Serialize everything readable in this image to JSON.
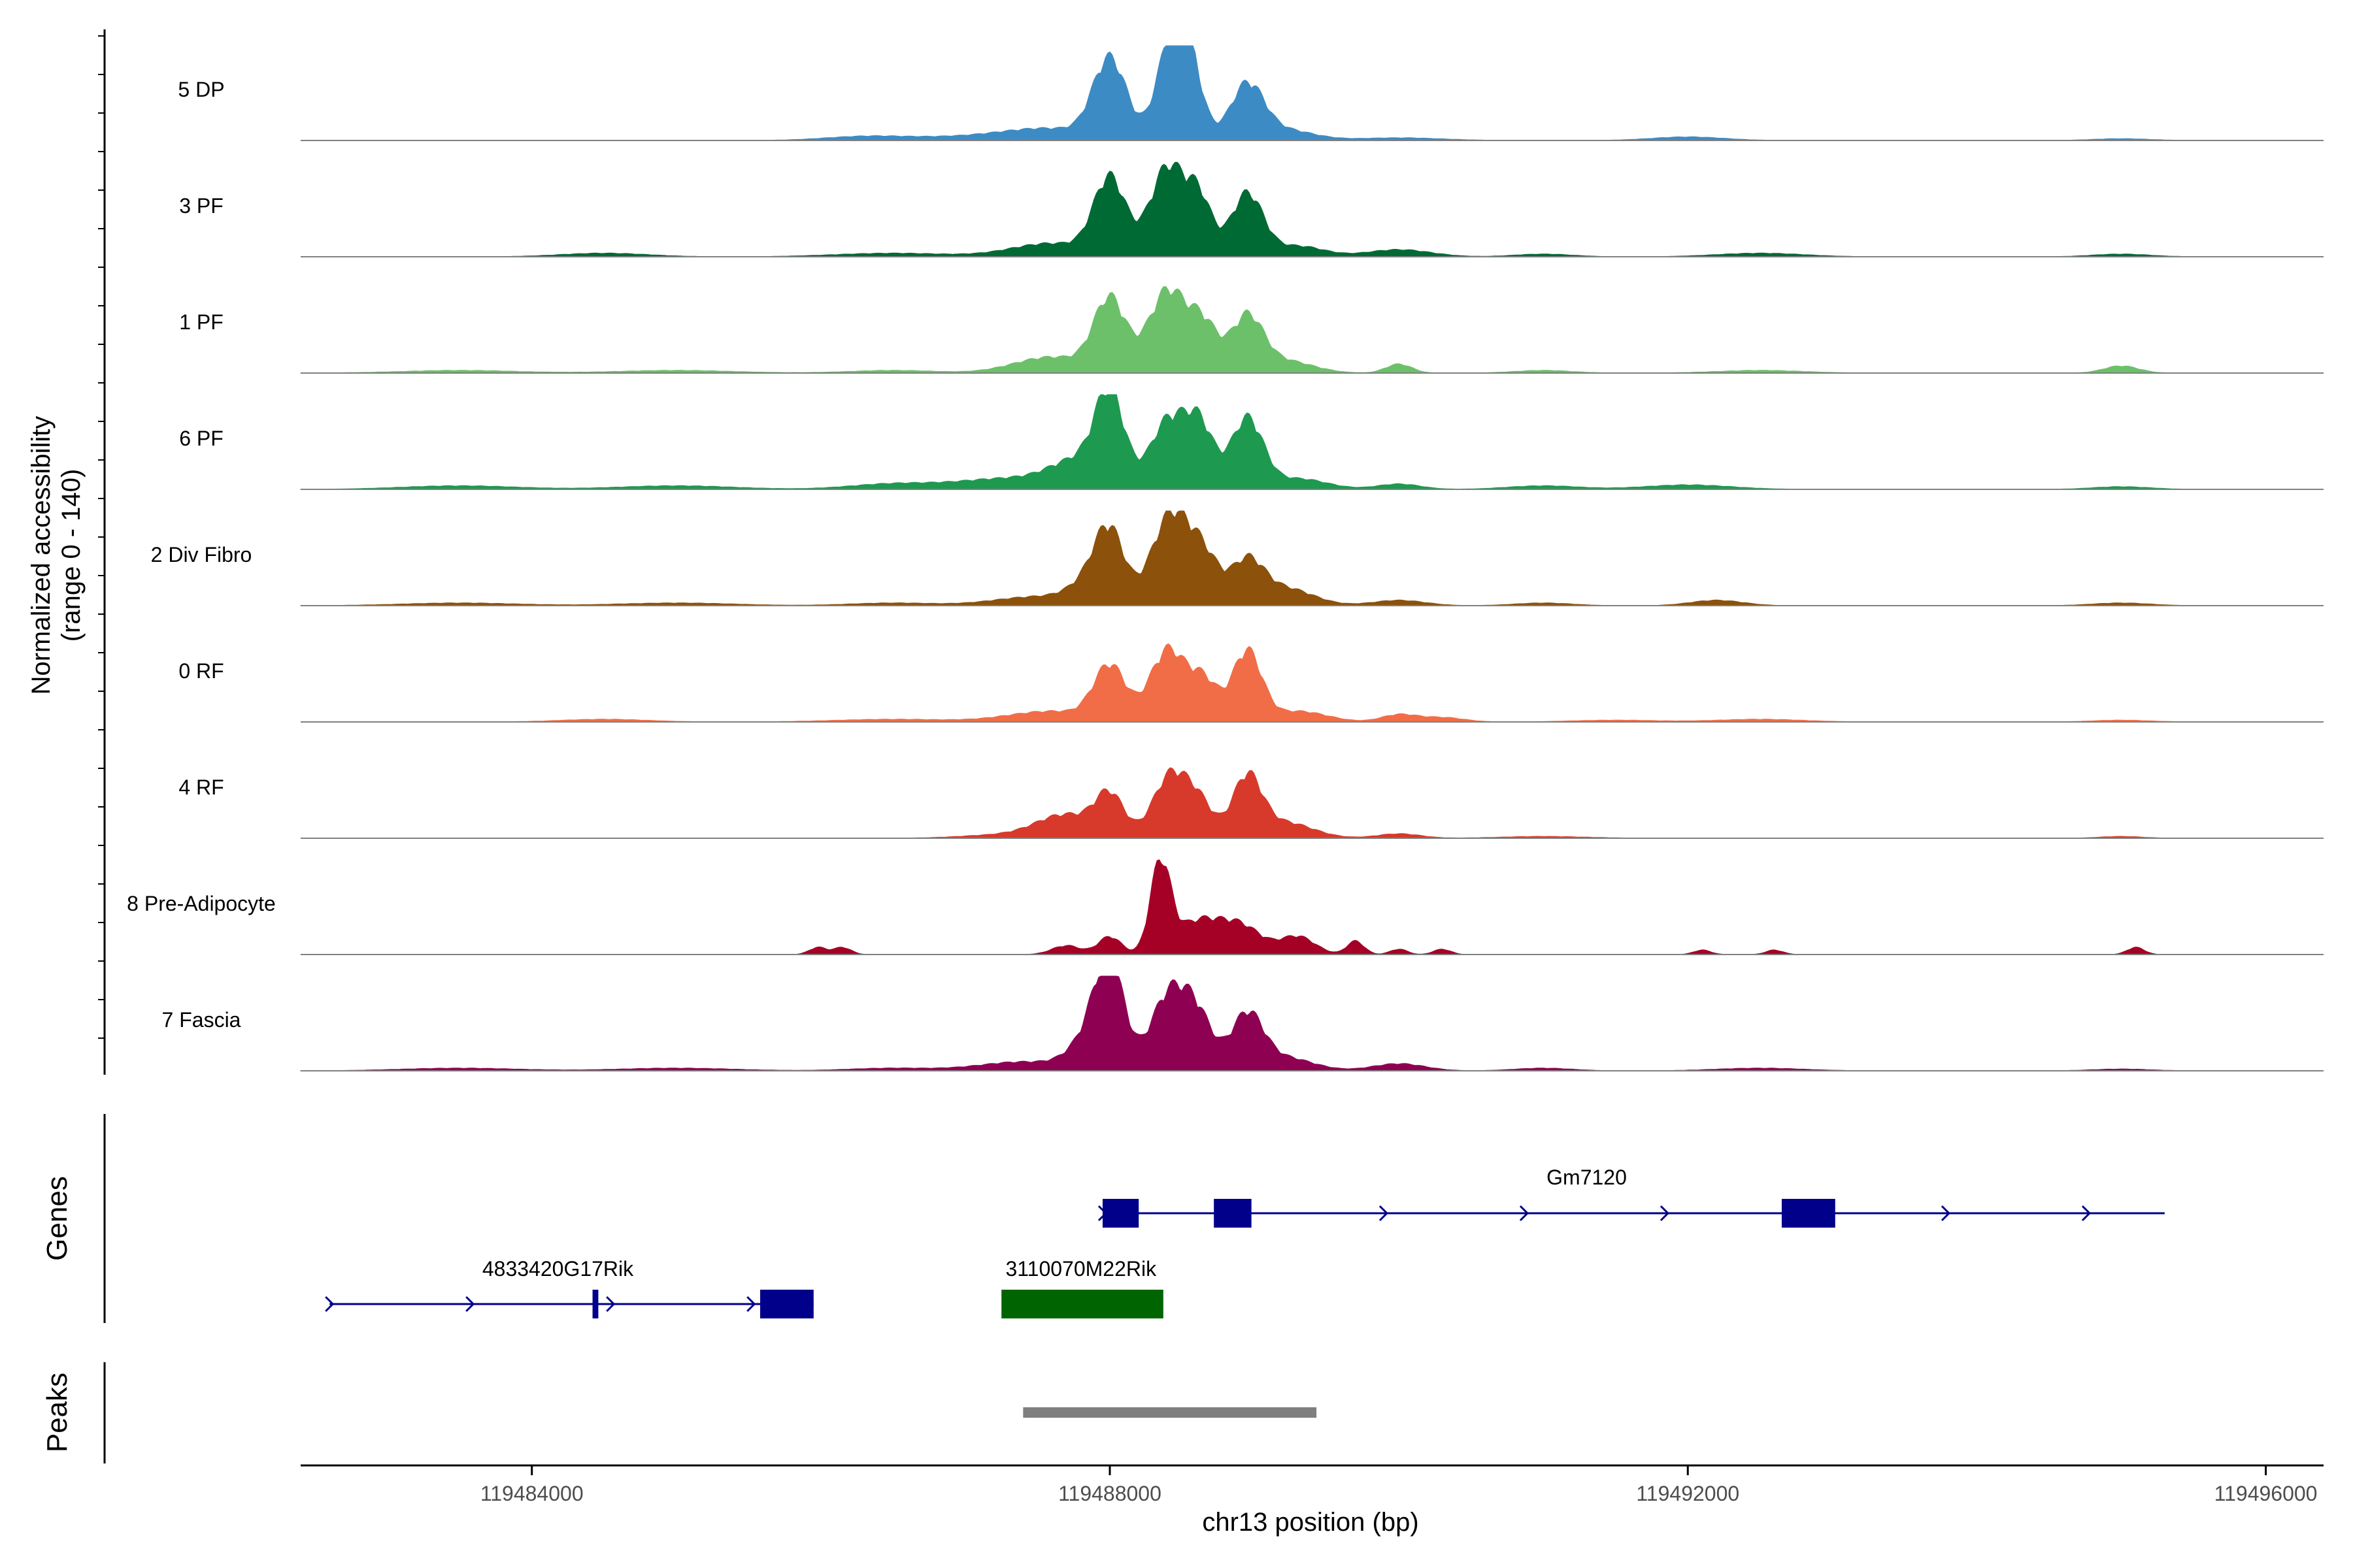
{
  "chart_data": {
    "type": "area",
    "y_axis_title_line1": "Normalized accessibility",
    "y_axis_title_line2": "(range 0 - 140)",
    "y_range": [
      0,
      140
    ],
    "x_label": "chr13 position (bp)",
    "x_range": [
      119482400,
      119496400
    ],
    "x_ticks": [
      119484000,
      119488000,
      119492000,
      119496000
    ],
    "x_tick_labels": [
      "119484000",
      "119488000",
      "119492000",
      "119496000"
    ],
    "series": [
      {
        "name": "5 DP",
        "color": "#3d8bc4",
        "peaks": [
          [
            119486300,
            0.04,
            280
          ],
          [
            119487200,
            0.05,
            500
          ],
          [
            119487600,
            0.1,
            300
          ],
          [
            119488000,
            0.88,
            115
          ],
          [
            119488420,
            1.0,
            100
          ],
          [
            119488550,
            0.78,
            90
          ],
          [
            119488950,
            0.6,
            115
          ],
          [
            119489200,
            0.12,
            200
          ],
          [
            119490000,
            0.03,
            300
          ],
          [
            119492000,
            0.04,
            250
          ],
          [
            119495000,
            0.02,
            200
          ]
        ]
      },
      {
        "name": "3 PF",
        "color": "#006a35",
        "peaks": [
          [
            119484500,
            0.04,
            300
          ],
          [
            119486500,
            0.04,
            400
          ],
          [
            119487600,
            0.15,
            280
          ],
          [
            119488000,
            0.85,
            110
          ],
          [
            119488400,
            1.0,
            120
          ],
          [
            119488620,
            0.6,
            90
          ],
          [
            119488950,
            0.7,
            110
          ],
          [
            119489300,
            0.12,
            180
          ],
          [
            119490000,
            0.08,
            220
          ],
          [
            119491000,
            0.03,
            200
          ],
          [
            119492500,
            0.04,
            300
          ],
          [
            119495000,
            0.03,
            200
          ]
        ]
      },
      {
        "name": "1 PF",
        "color": "#6cc06a",
        "peaks": [
          [
            119483500,
            0.03,
            400
          ],
          [
            119485000,
            0.03,
            400
          ],
          [
            119486500,
            0.03,
            300
          ],
          [
            119487600,
            0.18,
            260
          ],
          [
            119488000,
            0.8,
            110
          ],
          [
            119488400,
            0.92,
            130
          ],
          [
            119488650,
            0.5,
            100
          ],
          [
            119488950,
            0.6,
            110
          ],
          [
            119489200,
            0.14,
            200
          ],
          [
            119490000,
            0.1,
            90
          ],
          [
            119491000,
            0.03,
            200
          ],
          [
            119492500,
            0.03,
            300
          ],
          [
            119495000,
            0.08,
            120
          ]
        ]
      },
      {
        "name": "6 PF",
        "color": "#1e9950",
        "peaks": [
          [
            119483500,
            0.04,
            400
          ],
          [
            119485000,
            0.04,
            400
          ],
          [
            119486500,
            0.06,
            300
          ],
          [
            119487300,
            0.12,
            350
          ],
          [
            119487800,
            0.3,
            200
          ],
          [
            119488000,
            0.95,
            100
          ],
          [
            119488400,
            0.75,
            120
          ],
          [
            119488620,
            0.7,
            100
          ],
          [
            119488950,
            0.78,
            110
          ],
          [
            119489300,
            0.12,
            200
          ],
          [
            119490000,
            0.06,
            150
          ],
          [
            119491000,
            0.04,
            250
          ],
          [
            119492000,
            0.05,
            300
          ],
          [
            119495000,
            0.03,
            200
          ]
        ]
      },
      {
        "name": "2 Div Fibro",
        "color": "#8c510a",
        "peaks": [
          [
            119483500,
            0.03,
            400
          ],
          [
            119485000,
            0.03,
            400
          ],
          [
            119486500,
            0.03,
            300
          ],
          [
            119487500,
            0.1,
            300
          ],
          [
            119487900,
            0.28,
            150
          ],
          [
            119488000,
            0.65,
            100
          ],
          [
            119488420,
            1.0,
            130
          ],
          [
            119488650,
            0.5,
            110
          ],
          [
            119488950,
            0.45,
            110
          ],
          [
            119489200,
            0.2,
            200
          ],
          [
            119490000,
            0.06,
            180
          ],
          [
            119491000,
            0.03,
            200
          ],
          [
            119492200,
            0.06,
            180
          ],
          [
            119495000,
            0.03,
            200
          ]
        ]
      },
      {
        "name": "0 RF",
        "color": "#f16d47",
        "peaks": [
          [
            119484500,
            0.03,
            300
          ],
          [
            119486500,
            0.03,
            400
          ],
          [
            119487600,
            0.12,
            300
          ],
          [
            119488000,
            0.6,
            110
          ],
          [
            119488400,
            0.8,
            120
          ],
          [
            119488650,
            0.45,
            100
          ],
          [
            119488950,
            0.78,
            100
          ],
          [
            119489300,
            0.12,
            200
          ],
          [
            119490000,
            0.08,
            120
          ],
          [
            119490300,
            0.05,
            150
          ],
          [
            119491500,
            0.02,
            300
          ],
          [
            119492500,
            0.03,
            300
          ],
          [
            119495000,
            0.02,
            200
          ]
        ]
      },
      {
        "name": "4 RF",
        "color": "#d73a2b",
        "peaks": [
          [
            119487300,
            0.04,
            300
          ],
          [
            119487700,
            0.25,
            200
          ],
          [
            119488000,
            0.45,
            100
          ],
          [
            119488420,
            0.7,
            120
          ],
          [
            119488620,
            0.35,
            100
          ],
          [
            119488950,
            0.65,
            100
          ],
          [
            119489200,
            0.18,
            200
          ],
          [
            119490000,
            0.05,
            150
          ],
          [
            119491000,
            0.02,
            300
          ],
          [
            119495000,
            0.02,
            150
          ]
        ]
      },
      {
        "name": "8 Pre-Adipocyte",
        "color": "#a50026",
        "peaks": [
          [
            119485980,
            0.08,
            60
          ],
          [
            119486150,
            0.08,
            60
          ],
          [
            119487700,
            0.1,
            100
          ],
          [
            119488000,
            0.2,
            80
          ],
          [
            119488350,
            1.0,
            70
          ],
          [
            119488600,
            0.35,
            150
          ],
          [
            119488900,
            0.32,
            150
          ],
          [
            119489300,
            0.2,
            120
          ],
          [
            119489700,
            0.15,
            60
          ],
          [
            119490000,
            0.06,
            60
          ],
          [
            119490300,
            0.06,
            60
          ],
          [
            119492100,
            0.05,
            60
          ],
          [
            119492600,
            0.05,
            60
          ],
          [
            119495100,
            0.08,
            60
          ]
        ]
      },
      {
        "name": "7 Fascia",
        "color": "#8e0152",
        "peaks": [
          [
            119483500,
            0.03,
            400
          ],
          [
            119485000,
            0.03,
            400
          ],
          [
            119486500,
            0.03,
            300
          ],
          [
            119487400,
            0.1,
            300
          ],
          [
            119487900,
            0.4,
            150
          ],
          [
            119488000,
            0.95,
            100
          ],
          [
            119488400,
            0.8,
            120
          ],
          [
            119488600,
            0.6,
            110
          ],
          [
            119488950,
            0.6,
            110
          ],
          [
            119489200,
            0.15,
            200
          ],
          [
            119490000,
            0.08,
            180
          ],
          [
            119491000,
            0.03,
            200
          ],
          [
            119492500,
            0.03,
            300
          ],
          [
            119495000,
            0.02,
            200
          ]
        ]
      }
    ],
    "genes_panel_title": "Genes",
    "peaks_panel_title": "Peaks",
    "genes": [
      {
        "name": "Gm7120",
        "color": "#00008b",
        "row": 0,
        "start": 119487950,
        "end": 119495300,
        "exons": [
          [
            119487950,
            119488200
          ],
          [
            119488720,
            119488980
          ],
          [
            119492650,
            119493020
          ]
        ]
      },
      {
        "name": "4833420G17Rik",
        "color": "#00008b",
        "row": 1,
        "start": 119482600,
        "end": 119485950,
        "exons": [
          [
            119484420,
            119484460
          ],
          [
            119485580,
            119485950
          ]
        ]
      },
      {
        "name": "3110070M22Rik",
        "color": "#006400",
        "row": 1,
        "start": 119487250,
        "end": 119488370,
        "exons": [
          [
            119487250,
            119488370
          ]
        ]
      }
    ],
    "peak_regions": [
      {
        "start": 119487400,
        "end": 119489430,
        "color": "#7f7f7f"
      }
    ]
  }
}
